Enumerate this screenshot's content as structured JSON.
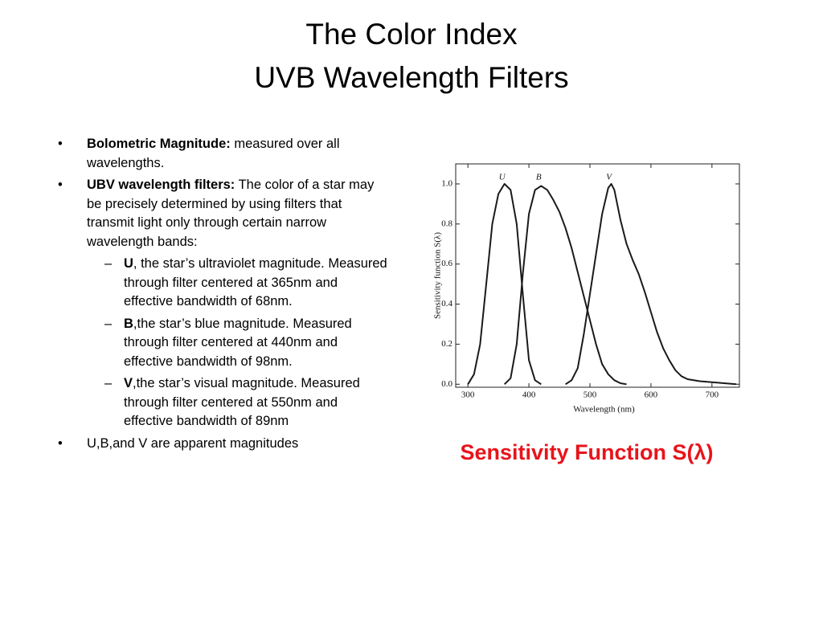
{
  "slide": {
    "title": [
      "The Color Index",
      "UVB Wavelength Filters"
    ],
    "bullets": [
      {
        "bold": "Bolometric Magnitude:",
        "text": " measured over all wavelengths."
      },
      {
        "bold": "UBV wavelength filters:",
        "text": " The color of a star may be precisely determined by using filters that transmit light only through certain narrow  wavelength bands:",
        "subitems": [
          {
            "bold": "U",
            "text": ", the star’s ultraviolet magnitude. Measured through filter centered at 365nm and effective bandwidth of 68nm."
          },
          {
            "bold": "B",
            "text": ",the star’s blue magnitude. Measured through filter centered at 440nm and effective bandwidth of 98nm."
          },
          {
            "bold": "V",
            "text": ",the star’s visual magnitude. Measured through filter centered at 550nm and effective bandwidth of 89nm"
          }
        ]
      },
      {
        "text": "U,B,and V are apparent magnitudes"
      }
    ],
    "caption": "Sensitivity Function S(λ)"
  },
  "chart_data": {
    "type": "line",
    "x_label": "Wavelength (nm)",
    "y_label": "Sensitivity function S(λ)",
    "xlim": [
      280,
      745
    ],
    "ylim": [
      -0.015,
      1.1
    ],
    "xticks": [
      300,
      400,
      500,
      600,
      700
    ],
    "yticks": [
      {
        "value": 0,
        "label": "0.0"
      },
      {
        "value": 0.2,
        "label": "0.2"
      },
      {
        "value": 0.4,
        "label": "0.4"
      },
      {
        "value": 0.6,
        "label": "0.6"
      },
      {
        "value": 0.8,
        "label": "0.8"
      },
      {
        "value": 1,
        "label": "1.0"
      }
    ],
    "series": [
      {
        "name": "U",
        "color": "#1a1a1a",
        "x": [
          300,
          310,
          320,
          330,
          340,
          350,
          360,
          370,
          380,
          390,
          400,
          410,
          420
        ],
        "values": [
          0,
          0.05,
          0.2,
          0.5,
          0.8,
          0.95,
          1.0,
          0.97,
          0.8,
          0.45,
          0.12,
          0.02,
          0
        ]
      },
      {
        "name": "B",
        "color": "#1a1a1a",
        "x": [
          360,
          370,
          380,
          390,
          400,
          410,
          420,
          430,
          440,
          450,
          460,
          470,
          480,
          490,
          500,
          510,
          520,
          530,
          540,
          550,
          560
        ],
        "values": [
          0,
          0.03,
          0.2,
          0.55,
          0.85,
          0.97,
          0.99,
          0.97,
          0.92,
          0.86,
          0.78,
          0.68,
          0.56,
          0.44,
          0.32,
          0.2,
          0.1,
          0.05,
          0.02,
          0.005,
          0
        ]
      },
      {
        "name": "V",
        "color": "#1a1a1a",
        "x": [
          460,
          470,
          480,
          490,
          500,
          510,
          520,
          530,
          535,
          540,
          550,
          560,
          570,
          580,
          590,
          600,
          610,
          620,
          630,
          640,
          650,
          660,
          680,
          700,
          720,
          740
        ],
        "values": [
          0,
          0.02,
          0.08,
          0.25,
          0.45,
          0.65,
          0.85,
          0.98,
          1.0,
          0.97,
          0.82,
          0.7,
          0.62,
          0.55,
          0.46,
          0.36,
          0.26,
          0.18,
          0.12,
          0.07,
          0.04,
          0.025,
          0.015,
          0.01,
          0.005,
          0
        ]
      }
    ]
  }
}
